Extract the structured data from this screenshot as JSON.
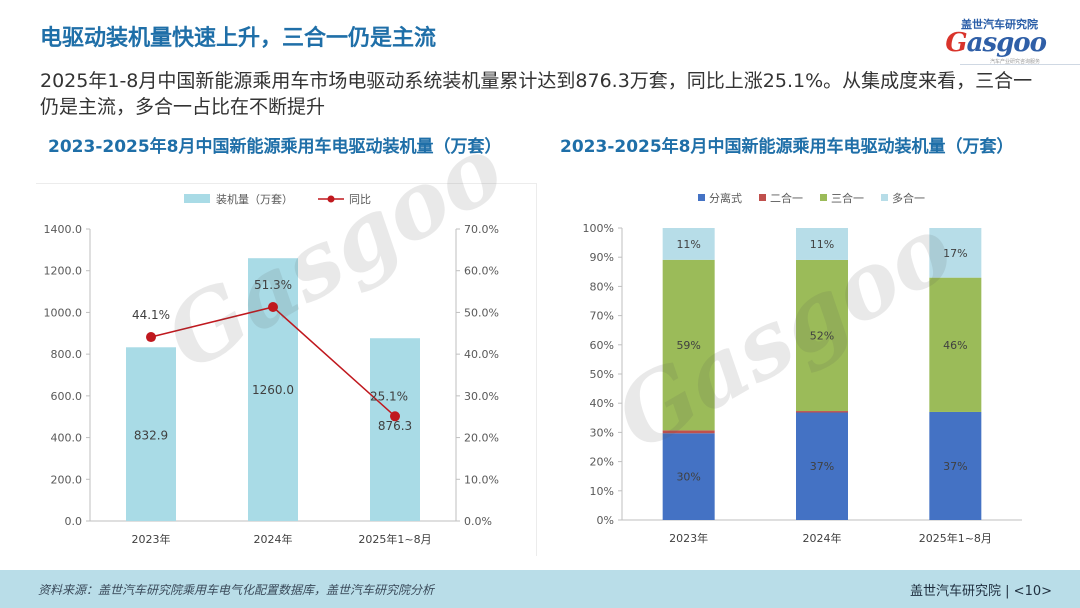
{
  "slide": {
    "title": "电驱动装机量快速上升，三合一仍是主流",
    "summary": "2025年1-8月中国新能源乘用车市场电驱动系统装机量累计达到876.3万套，同比上涨25.1%。从集成度来看，三合一仍是主流，多合一占比在不断提升",
    "page": "<10>"
  },
  "logo": {
    "org_name": "盖世汽车研究院",
    "wordmark_g": "G",
    "wordmark_rest": "asgoo",
    "tagline": "汽车产业研究咨询服务"
  },
  "footer": {
    "source": "资料来源：盖世汽车研究院乘用车电气化配置数据库，盖世汽车研究院分析",
    "org": "盖世汽车研究院"
  },
  "watermark": {
    "text": "Gasgoo"
  },
  "colors": {
    "title_blue": "#1f6fa8",
    "bar_light_blue": "#a9dbe6",
    "line_red": "#c0181e",
    "blue": "#4472c4",
    "red": "#c0504d",
    "green": "#9bbb59",
    "light_blue": "#b7dde8"
  },
  "chart_data": [
    {
      "type": "bar",
      "title": "2023-2025年8月中国新能源乘用车电驱动装机量（万套）",
      "categories": [
        "2023年",
        "2024年",
        "2025年1~8月"
      ],
      "series": [
        {
          "name": "装机量（万套）",
          "type": "bar",
          "axis": "left",
          "values": [
            832.9,
            1260.0,
            876.3
          ],
          "labels": [
            "832.9",
            "1260.0",
            "876.3"
          ]
        },
        {
          "name": "同比",
          "type": "line",
          "axis": "right",
          "values": [
            44.1,
            51.3,
            25.1
          ],
          "labels": [
            "44.1%",
            "51.3%",
            "25.1%"
          ]
        }
      ],
      "y_left": {
        "min": 0,
        "max": 1400,
        "step": 200,
        "ticks": [
          "0.0",
          "200.0",
          "400.0",
          "600.0",
          "800.0",
          "1000.0",
          "1200.0",
          "1400.0"
        ]
      },
      "y_right": {
        "min": 0,
        "max": 70,
        "step": 10,
        "ticks": [
          "0.0%",
          "10.0%",
          "20.0%",
          "30.0%",
          "40.0%",
          "50.0%",
          "60.0%",
          "70.0%"
        ]
      },
      "legend": "top-center"
    },
    {
      "type": "bar",
      "stacked": "percent",
      "title": "2023-2025年8月中国新能源乘用车电驱动装机量（万套）",
      "categories": [
        "2023年",
        "2024年",
        "2025年1~8月"
      ],
      "series": [
        {
          "name": "分离式",
          "values": [
            30,
            37,
            37
          ],
          "labels": [
            "30%",
            "37%",
            "37%"
          ]
        },
        {
          "name": "二合一",
          "values": [
            1,
            0.5,
            0
          ],
          "labels": [
            "",
            "",
            ""
          ]
        },
        {
          "name": "三合一",
          "values": [
            59,
            52,
            46
          ],
          "labels": [
            "59%",
            "52%",
            "46%"
          ]
        },
        {
          "name": "多合一",
          "values": [
            11,
            11,
            17
          ],
          "labels": [
            "11%",
            "11%",
            "17%"
          ]
        }
      ],
      "y": {
        "min": 0,
        "max": 100,
        "step": 10,
        "ticks": [
          "0%",
          "10%",
          "20%",
          "30%",
          "40%",
          "50%",
          "60%",
          "70%",
          "80%",
          "90%",
          "100%"
        ]
      },
      "legend": "top-center"
    }
  ]
}
